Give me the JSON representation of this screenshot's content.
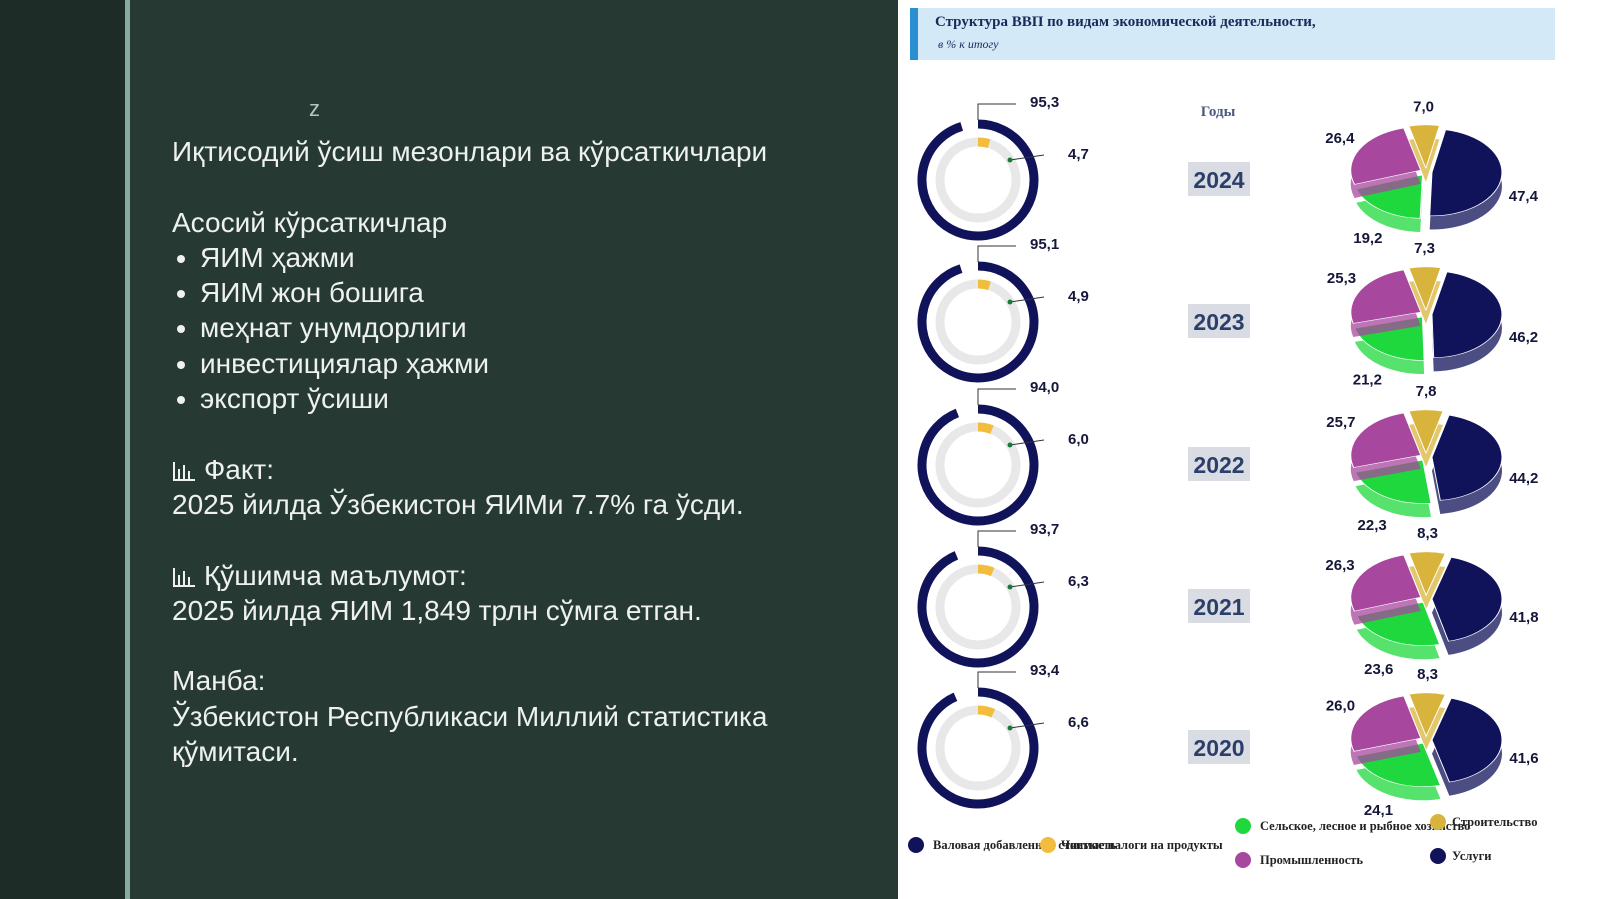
{
  "slide": {
    "marker": "z",
    "title": "Иқтисодий ўсиш мезонлари ва кўрсаткичлари",
    "subheading": "Асосий кўрсаткичлар",
    "bullets": [
      "ЯИМ ҳажми",
      "ЯИМ жон бошига",
      "меҳнат унумдорлиги",
      "инвестициялар ҳажми",
      "экспорт ўсиши"
    ],
    "fact_label": "Факт:",
    "fact_text": "2025 йилда Ўзбекистон ЯИМи 7.7% га ўсди.",
    "extra_label": "Қўшимча маълумот:",
    "extra_text": "2025 йилда ЯИМ 1,849 трлн сўмга етган.",
    "source_label": "Манба:",
    "source_text": "Ўзбекистон Республикаси Миллий статистика қўмитаси."
  },
  "infographic": {
    "title": "Структура ВВП по видам экономической деятельности,",
    "subtitle": "в % к итогу",
    "years_heading": "Годы",
    "rows": [
      {
        "year": "2024",
        "gva": {
          "value": 95.3,
          "label": "95,3"
        },
        "taxes": {
          "value": 4.7,
          "label": "4,7"
        },
        "construction": {
          "value": 7.0,
          "label": "7,0"
        },
        "services": {
          "value": 47.4,
          "label": "47,4"
        },
        "agriculture": {
          "value": 19.2,
          "label": "19,2"
        },
        "industry": {
          "value": 26.4,
          "label": "26,4"
        }
      },
      {
        "year": "2023",
        "gva": {
          "value": 95.1,
          "label": "95,1"
        },
        "taxes": {
          "value": 4.9,
          "label": "4,9"
        },
        "construction": {
          "value": 7.3,
          "label": "7,3"
        },
        "services": {
          "value": 46.2,
          "label": "46,2"
        },
        "agriculture": {
          "value": 21.2,
          "label": "21,2"
        },
        "industry": {
          "value": 25.3,
          "label": "25,3"
        }
      },
      {
        "year": "2022",
        "gva": {
          "value": 94.0,
          "label": "94,0"
        },
        "taxes": {
          "value": 6.0,
          "label": "6,0"
        },
        "construction": {
          "value": 7.8,
          "label": "7,8"
        },
        "services": {
          "value": 44.2,
          "label": "44,2"
        },
        "agriculture": {
          "value": 22.3,
          "label": "22,3"
        },
        "industry": {
          "value": 25.7,
          "label": "25,7"
        }
      },
      {
        "year": "2021",
        "gva": {
          "value": 93.7,
          "label": "93,7"
        },
        "taxes": {
          "value": 6.3,
          "label": "6,3"
        },
        "construction": {
          "value": 8.3,
          "label": "8,3"
        },
        "services": {
          "value": 41.8,
          "label": "41,8"
        },
        "agriculture": {
          "value": 23.6,
          "label": "23,6"
        },
        "industry": {
          "value": 26.3,
          "label": "26,3"
        }
      },
      {
        "year": "2020",
        "gva": {
          "value": 93.4,
          "label": "93,4"
        },
        "taxes": {
          "value": 6.6,
          "label": "6,6"
        },
        "construction": {
          "value": 8.3,
          "label": "8,3"
        },
        "services": {
          "value": 41.6,
          "label": "41,6"
        },
        "agriculture": {
          "value": 24.1,
          "label": "24,1"
        },
        "industry": {
          "value": 26.0,
          "label": "26,0"
        }
      }
    ],
    "colors": {
      "gva": "#10135a",
      "taxes": "#f2bd3c",
      "agriculture": "#1fd83e",
      "industry": "#a8479e",
      "construction": "#d9b43c",
      "services": "#10135a"
    },
    "legend": {
      "gva": "Валовая добавленная стоимость",
      "taxes": "Чистые налоги на продукты",
      "agriculture": "Сельское, лесное и рыбное хозяйство",
      "industry": "Промышленность",
      "construction": "Строительство",
      "services": "Услуги"
    }
  }
}
